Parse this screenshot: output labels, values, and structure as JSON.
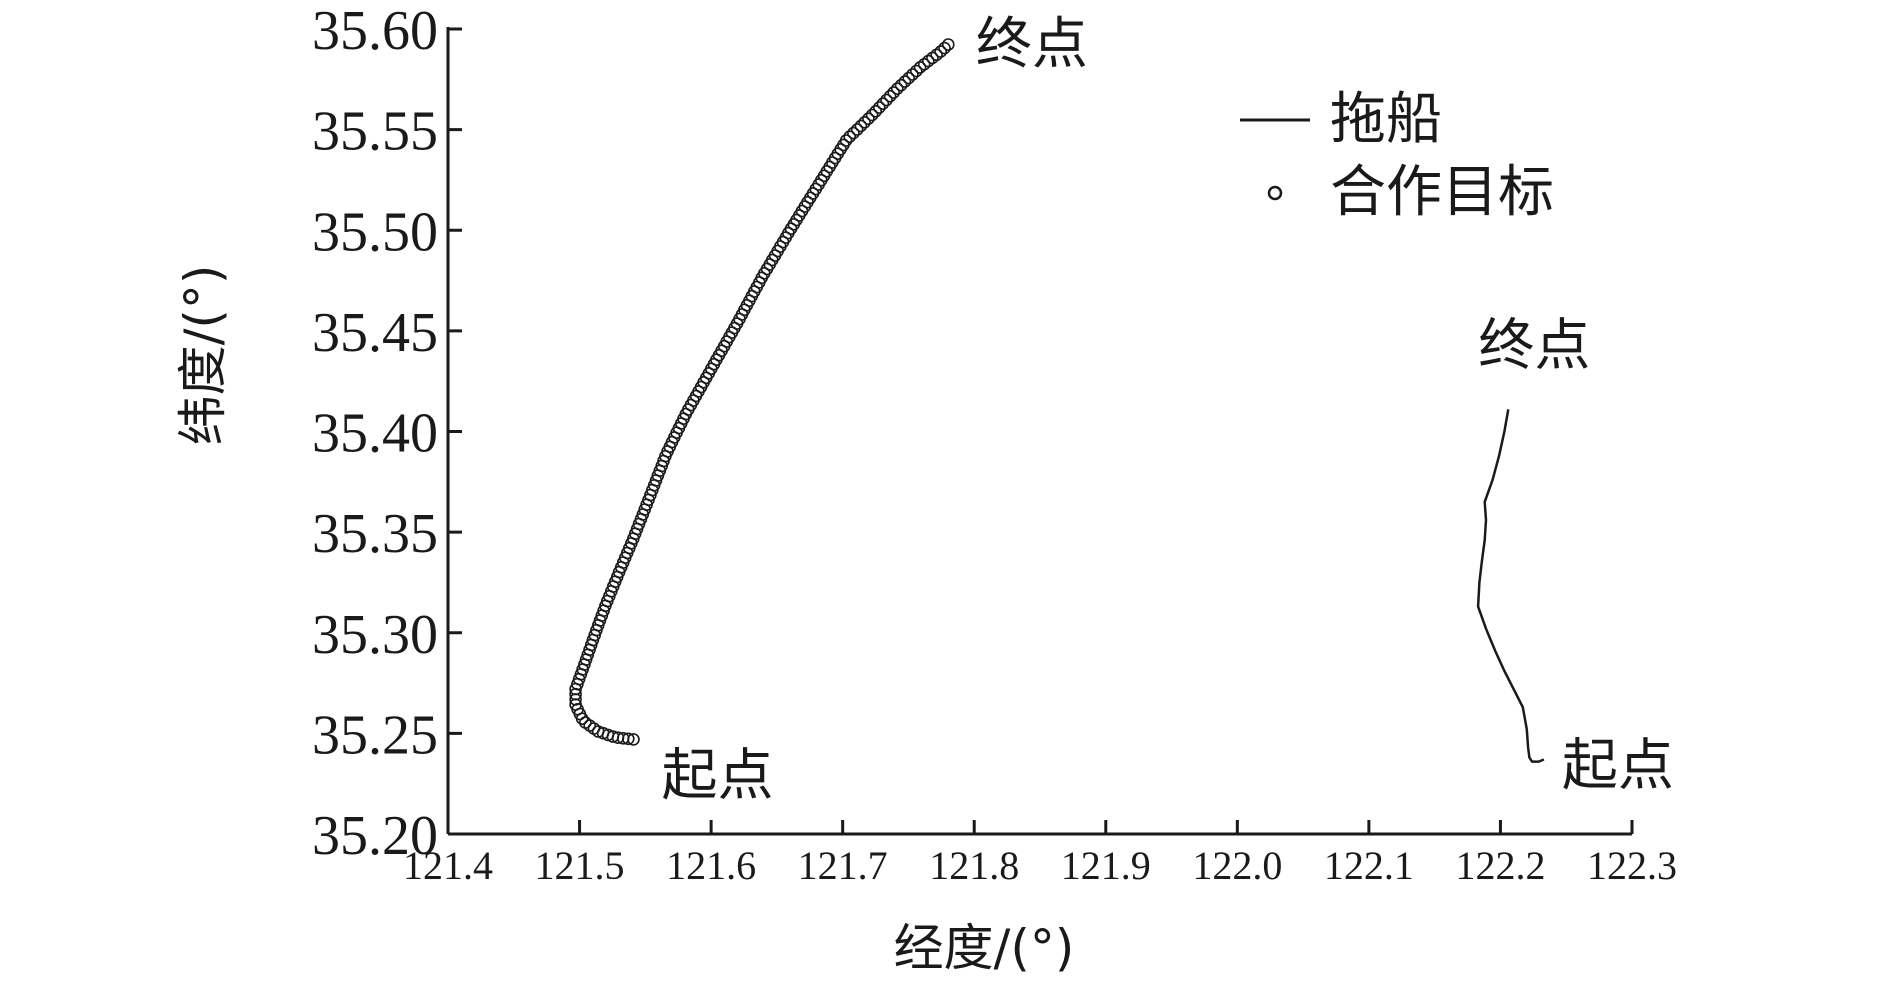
{
  "chart_data": {
    "type": "line",
    "xlabel": "经度/(°)",
    "ylabel": "纬度/(°)",
    "xlim": [
      121.4,
      122.3
    ],
    "ylim": [
      35.2,
      35.6
    ],
    "x_ticks": [
      "121.4",
      "121.5",
      "121.6",
      "121.7",
      "121.8",
      "121.9",
      "122.0",
      "122.1",
      "122.2",
      "122.3"
    ],
    "x_tick_values": [
      121.4,
      121.5,
      121.6,
      121.7,
      121.8,
      121.9,
      122.0,
      122.1,
      122.2,
      122.3
    ],
    "y_ticks": [
      "35.20",
      "35.25",
      "35.30",
      "35.35",
      "35.40",
      "35.45",
      "35.50",
      "35.55",
      "35.60"
    ],
    "y_tick_values": [
      35.2,
      35.25,
      35.3,
      35.35,
      35.4,
      35.45,
      35.5,
      35.55,
      35.6
    ],
    "grid": false,
    "legend_position": "top-right",
    "series": [
      {
        "name": "拖船",
        "style": "line",
        "color": "#1a1a1a",
        "points": [
          [
            122.233,
            35.237
          ],
          [
            122.229,
            35.236
          ],
          [
            122.224,
            35.236
          ],
          [
            122.222,
            35.238
          ],
          [
            122.221,
            35.243
          ],
          [
            122.22,
            35.252
          ],
          [
            122.217,
            35.263
          ],
          [
            122.21,
            35.272
          ],
          [
            122.203,
            35.281
          ],
          [
            122.196,
            35.291
          ],
          [
            122.189,
            35.302
          ],
          [
            122.183,
            35.313
          ],
          [
            122.184,
            35.325
          ],
          [
            122.186,
            35.336
          ],
          [
            122.188,
            35.346
          ],
          [
            122.189,
            35.356
          ],
          [
            122.188,
            35.365
          ],
          [
            122.194,
            35.376
          ],
          [
            122.199,
            35.388
          ],
          [
            122.203,
            35.4
          ],
          [
            122.206,
            35.411
          ]
        ]
      },
      {
        "name": "合作目标",
        "style": "marker",
        "marker": "circle",
        "color": "#1a1a1a",
        "points": [
          [
            121.541,
            35.247
          ],
          [
            121.527,
            35.248
          ],
          [
            121.514,
            35.251
          ],
          [
            121.503,
            35.256
          ],
          [
            121.497,
            35.264
          ],
          [
            121.497,
            35.272
          ],
          [
            121.503,
            35.283
          ],
          [
            121.511,
            35.298
          ],
          [
            121.52,
            35.314
          ],
          [
            121.53,
            35.33
          ],
          [
            121.541,
            35.347
          ],
          [
            121.553,
            35.367
          ],
          [
            121.566,
            35.389
          ],
          [
            121.581,
            35.409
          ],
          [
            121.6,
            35.431
          ],
          [
            121.62,
            35.454
          ],
          [
            121.639,
            35.477
          ],
          [
            121.66,
            35.5
          ],
          [
            121.681,
            35.522
          ],
          [
            121.703,
            35.545
          ],
          [
            121.722,
            35.557
          ],
          [
            121.741,
            35.57
          ],
          [
            121.759,
            35.581
          ],
          [
            121.775,
            35.589
          ],
          [
            121.783,
            35.594
          ]
        ]
      }
    ],
    "annotations": [
      {
        "text": "终点",
        "x": 121.783,
        "y": 35.594,
        "series": "合作目标"
      },
      {
        "text": "起点",
        "x": 121.541,
        "y": 35.247,
        "series": "合作目标"
      },
      {
        "text": "终点",
        "x": 122.206,
        "y": 35.411,
        "series": "拖船"
      },
      {
        "text": "起点",
        "x": 122.233,
        "y": 35.237,
        "series": "拖船"
      }
    ]
  }
}
